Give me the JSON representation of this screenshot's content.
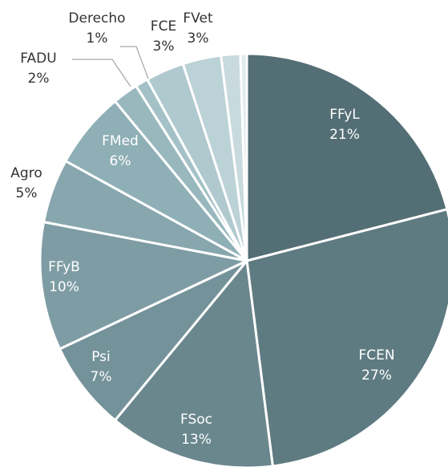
{
  "chart_data": {
    "type": "pie",
    "categories": [
      "FFyL",
      "FCEN",
      "FSoc",
      "Psi",
      "FFyB",
      "Agro",
      "FMed",
      "FADU",
      "Derecho",
      "FCE",
      "FVet",
      null,
      null
    ],
    "values": [
      21,
      27,
      13,
      7,
      10,
      5,
      6,
      2,
      1,
      3,
      3,
      1.5,
      0.5
    ],
    "value_labels": [
      "21%",
      "27%",
      "13%",
      "7%",
      "10%",
      "5%",
      "6%",
      "2%",
      "1%",
      "3%",
      "3%",
      null,
      null
    ],
    "colors": [
      "#546e75",
      "#5f7b82",
      "#6a878e",
      "#74929a",
      "#7e9ca4",
      "#87a6ad",
      "#8fafb6",
      "#98b8be",
      "#a3c1c7",
      "#afc9ce",
      "#bbd2d6",
      "#c8dadd",
      "#e0ebec"
    ]
  }
}
